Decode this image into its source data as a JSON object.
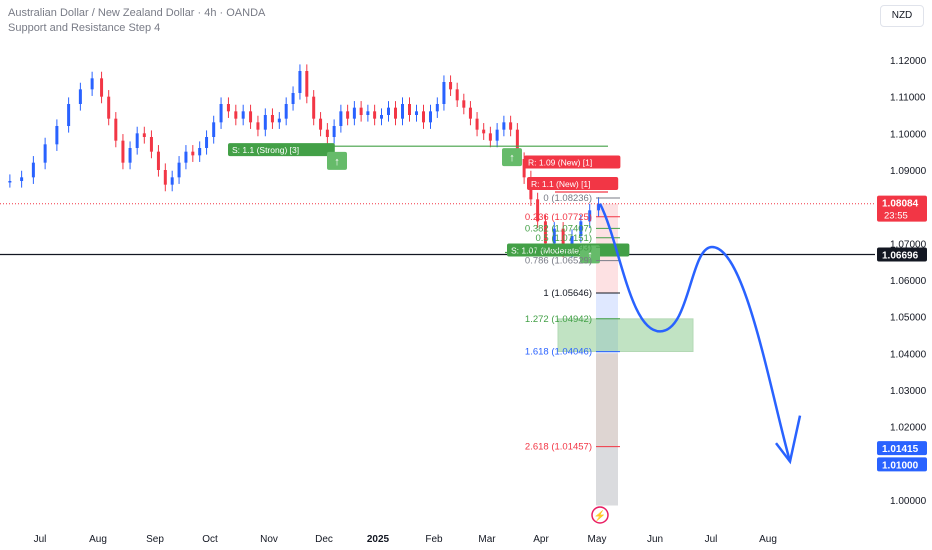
{
  "header": {
    "symbol_line": "Australian Dollar / New Zealand Dollar · 4h · OANDA",
    "indicator_line": "Support and Resistance Step 4"
  },
  "currency_button": "NZD",
  "colors": {
    "candle_up": "#2962ff",
    "candle_down": "#f23645",
    "support_line": "#43a047",
    "projection": "#2962ff",
    "price_badge": "#f23645",
    "level_badge": "#131722",
    "target_zone": "#66bb6a"
  },
  "chart_data": {
    "type": "line",
    "title": "Australian Dollar / New Zealand Dollar · 4h · OANDA",
    "x_ticks": [
      "Jul",
      "Aug",
      "Sep",
      "Oct",
      "Nov",
      "Dec",
      "2025",
      "Feb",
      "Mar",
      "Apr",
      "May",
      "Jun",
      "Jul",
      "Aug"
    ],
    "y_ticks": [
      "1.12000",
      "1.11000",
      "1.10000",
      "1.09000",
      "1.07000",
      "1.06000",
      "1.05000",
      "1.04000",
      "1.03000",
      "1.02000",
      "1.01000",
      "1.00000"
    ],
    "ylim": [
      0.997,
      1.128
    ],
    "series": [
      {
        "kind": "price",
        "points": [
          [
            "Jul",
            1.087
          ],
          [
            "Jul",
            1.088
          ],
          [
            "Jul",
            1.092
          ],
          [
            "Jul",
            1.097
          ],
          [
            "Jul",
            1.102
          ],
          [
            "Jul",
            1.108
          ],
          [
            "Jul",
            1.112
          ],
          [
            "Jul",
            1.115
          ],
          [
            "Aug",
            1.11
          ],
          [
            "Aug",
            1.104
          ],
          [
            "Aug",
            1.098
          ],
          [
            "Aug",
            1.092
          ],
          [
            "Aug",
            1.096
          ],
          [
            "Aug",
            1.1
          ],
          [
            "Aug",
            1.099
          ],
          [
            "Aug",
            1.095
          ],
          [
            "Sep",
            1.09
          ],
          [
            "Sep",
            1.086
          ],
          [
            "Sep",
            1.088
          ],
          [
            "Sep",
            1.092
          ],
          [
            "Sep",
            1.095
          ],
          [
            "Sep",
            1.094
          ],
          [
            "Sep",
            1.096
          ],
          [
            "Sep",
            1.099
          ],
          [
            "Oct",
            1.103
          ],
          [
            "Oct",
            1.108
          ],
          [
            "Oct",
            1.106
          ],
          [
            "Oct",
            1.104
          ],
          [
            "Oct",
            1.106
          ],
          [
            "Oct",
            1.103
          ],
          [
            "Oct",
            1.101
          ],
          [
            "Oct",
            1.105
          ],
          [
            "Nov",
            1.103
          ],
          [
            "Nov",
            1.104
          ],
          [
            "Nov",
            1.108
          ],
          [
            "Nov",
            1.111
          ],
          [
            "Nov",
            1.117
          ],
          [
            "Nov",
            1.11
          ],
          [
            "Nov",
            1.104
          ],
          [
            "Nov",
            1.101
          ],
          [
            "Dec",
            1.099
          ],
          [
            "Dec",
            1.102
          ],
          [
            "Dec",
            1.106
          ],
          [
            "Dec",
            1.104
          ],
          [
            "Dec",
            1.107
          ],
          [
            "Dec",
            1.105
          ],
          [
            "Dec",
            1.106
          ],
          [
            "Dec",
            1.104
          ],
          [
            "2025",
            1.105
          ],
          [
            "2025",
            1.107
          ],
          [
            "2025",
            1.104
          ],
          [
            "2025",
            1.108
          ],
          [
            "2025",
            1.105
          ],
          [
            "2025",
            1.106
          ],
          [
            "2025",
            1.103
          ],
          [
            "2025",
            1.106
          ],
          [
            "Feb",
            1.108
          ],
          [
            "Feb",
            1.114
          ],
          [
            "Feb",
            1.112
          ],
          [
            "Feb",
            1.109
          ],
          [
            "Feb",
            1.107
          ],
          [
            "Feb",
            1.104
          ],
          [
            "Feb",
            1.101
          ],
          [
            "Feb",
            1.1
          ],
          [
            "Mar",
            1.098
          ],
          [
            "Mar",
            1.101
          ],
          [
            "Mar",
            1.103
          ],
          [
            "Mar",
            1.101
          ],
          [
            "Mar",
            1.093
          ],
          [
            "Mar",
            1.088
          ],
          [
            "Mar",
            1.082
          ],
          [
            "Mar",
            1.076
          ],
          [
            "Apr",
            1.07
          ],
          [
            "Apr",
            1.074
          ],
          [
            "Apr",
            1.068
          ],
          [
            "Apr",
            1.072
          ],
          [
            "Apr",
            1.076
          ],
          [
            "Apr",
            1.079
          ],
          [
            "Apr",
            1.0808
          ]
        ],
        "note": "x given as month label; points spaced evenly within each month"
      },
      {
        "kind": "projection",
        "points": [
          [
            1.0808,
            "May"
          ],
          [
            1.048,
            "May-Jun"
          ],
          [
            1.046,
            "Jun"
          ],
          [
            1.069,
            "Jul"
          ],
          [
            1.01,
            "Aug"
          ]
        ]
      }
    ],
    "horizontal_levels": [
      {
        "label": "S: 1.1 (Strong) [3]",
        "value": 1.0965,
        "kind": "support"
      },
      {
        "label": "R: 1.09 (New) [1]",
        "value": 1.0915,
        "kind": "resistance"
      },
      {
        "label": "R: 1.1 (New) [1]",
        "value": 1.084,
        "kind": "resistance"
      },
      {
        "label": "S: 1.07 (Moderate) [3]",
        "value": 1.0675,
        "kind": "support"
      }
    ],
    "fibonacci": [
      {
        "ratio": "0",
        "price": "1.08236",
        "value": 1.08236
      },
      {
        "ratio": "0.236",
        "price": "1.07725",
        "value": 1.07725
      },
      {
        "ratio": "0.382",
        "price": "1.07407",
        "value": 1.07407
      },
      {
        "ratio": "0.5",
        "price": "1.07151",
        "value": 1.07151
      },
      {
        "ratio": "0.618",
        "price": "1.06893",
        "value": 1.06893
      },
      {
        "ratio": "0.786",
        "price": "1.06529",
        "value": 1.06529
      },
      {
        "ratio": "1",
        "price": "1.05646",
        "value": 1.05646
      },
      {
        "ratio": "1.272",
        "price": "1.04942",
        "value": 1.04942
      },
      {
        "ratio": "1.618",
        "price": "1.04046",
        "value": 1.04046
      },
      {
        "ratio": "2.618",
        "price": "1.01457",
        "value": 1.01457
      }
    ],
    "axis_badges": [
      {
        "price": "1.08084",
        "sub": "23:55",
        "kind": "current"
      },
      {
        "price": "1.06696",
        "kind": "level"
      },
      {
        "price": "1.01415",
        "kind": "projection"
      },
      {
        "price": "1.01000",
        "kind": "projection"
      }
    ],
    "grid": false,
    "legend": "none"
  }
}
